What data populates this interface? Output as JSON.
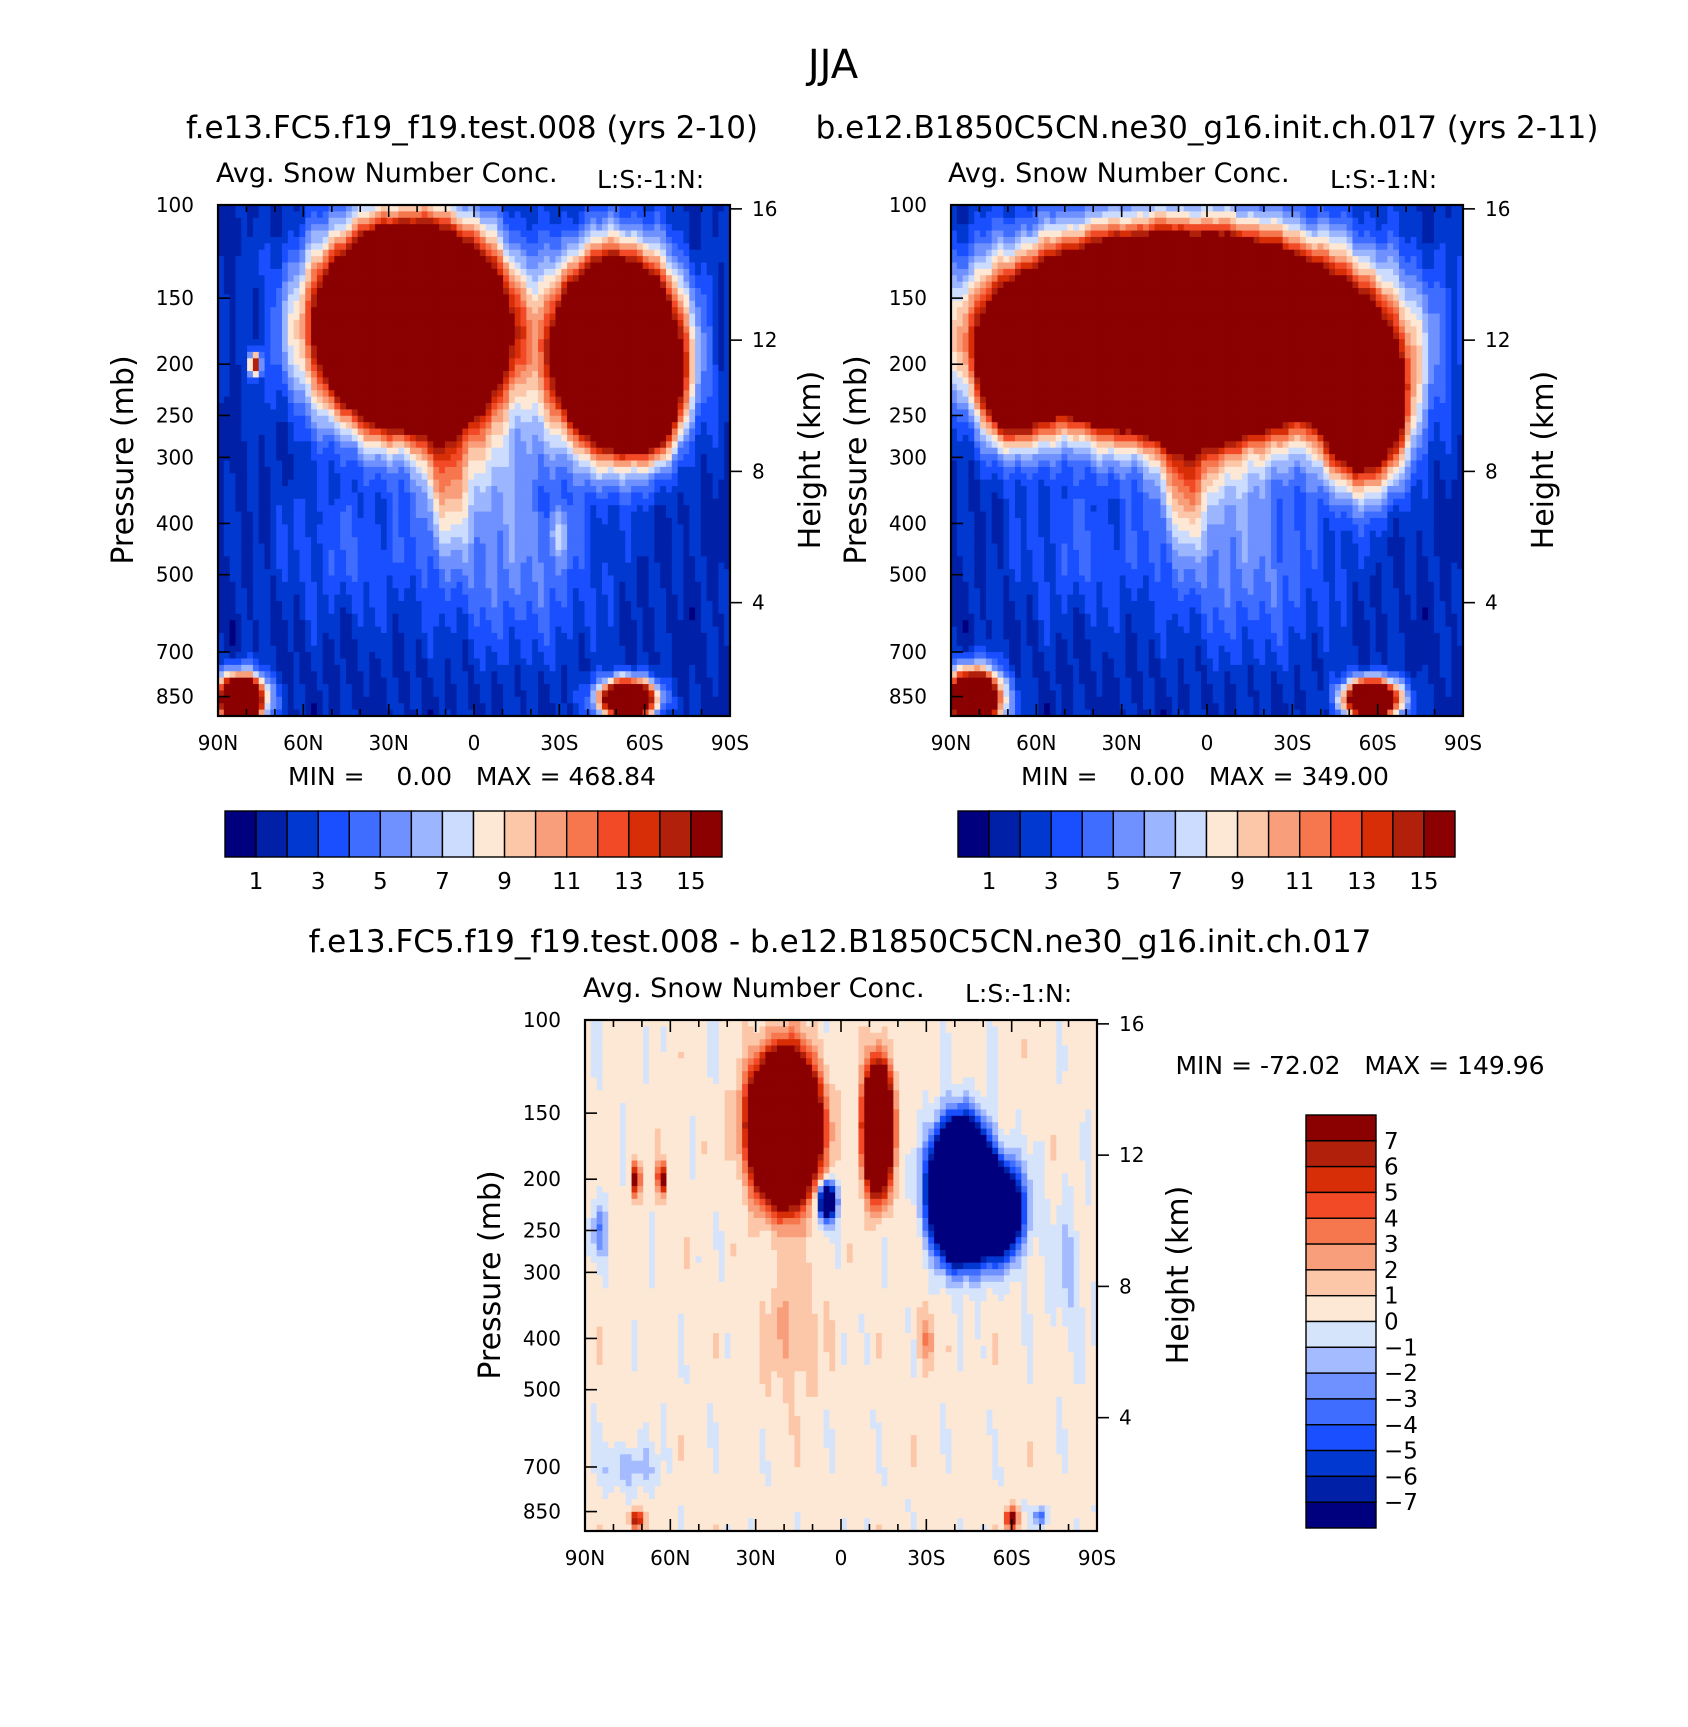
{
  "figure": {
    "title": "JJA",
    "colors": {
      "main_scale": [
        "#00007f",
        "#0020a8",
        "#0038d0",
        "#1a4fff",
        "#3f6dff",
        "#6e91ff",
        "#9cb5ff",
        "#ccdcff",
        "#fde8d5",
        "#fcc6a8",
        "#f99e7a",
        "#f6774e",
        "#f24a26",
        "#d82e08",
        "#b0200a",
        "#8b0000"
      ],
      "diff_scale": [
        "#00007f",
        "#0020a8",
        "#0038d0",
        "#1a4fff",
        "#3f6dff",
        "#6e91ff",
        "#a5bbff",
        "#d6e4fb",
        "#fde8d5",
        "#fcc6a8",
        "#f99e7a",
        "#f6774e",
        "#f24a26",
        "#d82e08",
        "#b0200a",
        "#8b0000"
      ]
    }
  },
  "chart_data": [
    {
      "id": "panel-test",
      "type": "heatmap",
      "case_title": "f.e13.FC5.f19_f19.test.008 (yrs 2-10)",
      "title": "Avg. Snow Number Conc.",
      "title_right": "L:S:-1:N:",
      "xlabel": "",
      "ylabel": "Pressure (mb)",
      "ylabel_right": "Height (km)",
      "x_ticks": [
        "90N",
        "60N",
        "30N",
        "0",
        "30S",
        "60S",
        "90S"
      ],
      "x_range": [
        90,
        -90
      ],
      "y_ticks": [
        100,
        150,
        200,
        250,
        300,
        400,
        500,
        700,
        850
      ],
      "y_range_mb": [
        100,
        925
      ],
      "y_scale": "log",
      "height_ticks_km": [
        4,
        8,
        12,
        16
      ],
      "min_text": "MIN =    0.00   MAX = 468.84",
      "min": 0.0,
      "max": 468.84,
      "colorbar": {
        "orientation": "horizontal",
        "labels": [
          "1",
          "3",
          "5",
          "7",
          "9",
          "11",
          "13",
          "15"
        ],
        "levels": 16
      },
      "blobs": [
        {
          "lat": 22,
          "p": 170,
          "w": 26,
          "h": 0.34,
          "v": 80
        },
        {
          "lat": -50,
          "p": 190,
          "w": 18,
          "h": 0.34,
          "v": 60
        },
        {
          "lat": -62,
          "p": 230,
          "w": 9,
          "h": 0.2,
          "v": 20
        },
        {
          "lat": 10,
          "p": 330,
          "w": 8,
          "h": 0.3,
          "v": 6
        },
        {
          "lat": -5,
          "p": 300,
          "w": 20,
          "h": 0.35,
          "v": 4
        },
        {
          "lat": -30,
          "p": 420,
          "w": 4,
          "h": 0.12,
          "v": 3
        },
        {
          "lat": 82,
          "p": 860,
          "w": 8,
          "h": 0.1,
          "v": 30
        },
        {
          "lat": -54,
          "p": 860,
          "w": 9,
          "h": 0.08,
          "v": 30
        },
        {
          "lat": 45,
          "p": 450,
          "w": 25,
          "h": 0.3,
          "v": 2
        },
        {
          "lat": -15,
          "p": 500,
          "w": 30,
          "h": 0.35,
          "v": 3
        },
        {
          "lat": 77,
          "p": 200,
          "w": 2,
          "h": 0.05,
          "v": 14
        }
      ]
    },
    {
      "id": "panel-control",
      "type": "heatmap",
      "case_title": "b.e12.B1850C5CN.ne30_g16.init.ch.017 (yrs 2-11)",
      "title": "Avg. Snow Number Conc.",
      "title_right": "L:S:-1:N:",
      "xlabel": "",
      "ylabel": "Pressure (mb)",
      "ylabel_right": "Height (km)",
      "x_ticks": [
        "90N",
        "60N",
        "30N",
        "0",
        "30S",
        "60S",
        "90S"
      ],
      "x_range": [
        90,
        -90
      ],
      "y_ticks": [
        100,
        150,
        200,
        250,
        300,
        400,
        500,
        700,
        850
      ],
      "y_range_mb": [
        100,
        925
      ],
      "y_scale": "log",
      "height_ticks_km": [
        4,
        8,
        12,
        16
      ],
      "min_text": "MIN =    0.00   MAX = 349.00",
      "min": 0.0,
      "max": 349.0,
      "colorbar": {
        "orientation": "horizontal",
        "labels": [
          "1",
          "3",
          "5",
          "7",
          "9",
          "11",
          "13",
          "15"
        ],
        "levels": 16
      },
      "blobs": [
        {
          "lat": 10,
          "p": 175,
          "w": 50,
          "h": 0.33,
          "v": 80
        },
        {
          "lat": -55,
          "p": 240,
          "w": 14,
          "h": 0.3,
          "v": 30
        },
        {
          "lat": 68,
          "p": 210,
          "w": 10,
          "h": 0.25,
          "v": 25
        },
        {
          "lat": 8,
          "p": 330,
          "w": 8,
          "h": 0.3,
          "v": 6
        },
        {
          "lat": -5,
          "p": 300,
          "w": 22,
          "h": 0.35,
          "v": 4
        },
        {
          "lat": 82,
          "p": 860,
          "w": 9,
          "h": 0.12,
          "v": 30
        },
        {
          "lat": -58,
          "p": 860,
          "w": 9,
          "h": 0.08,
          "v": 30
        },
        {
          "lat": 45,
          "p": 450,
          "w": 25,
          "h": 0.3,
          "v": 2
        },
        {
          "lat": -15,
          "p": 500,
          "w": 30,
          "h": 0.35,
          "v": 3
        }
      ]
    },
    {
      "id": "panel-diff",
      "type": "heatmap",
      "case_title": "f.e13.FC5.f19_f19.test.008 - b.e12.B1850C5CN.ne30_g16.init.ch.017",
      "title": "Avg. Snow Number Conc.",
      "title_right": "L:S:-1:N:",
      "xlabel": "",
      "ylabel": "Pressure (mb)",
      "ylabel_right": "Height (km)",
      "x_ticks": [
        "90N",
        "60N",
        "30N",
        "0",
        "30S",
        "60S",
        "90S"
      ],
      "x_range": [
        90,
        -90
      ],
      "y_ticks": [
        100,
        150,
        200,
        250,
        300,
        400,
        500,
        700,
        850
      ],
      "y_range_mb": [
        100,
        925
      ],
      "y_scale": "log",
      "height_ticks_km": [
        4,
        8,
        12,
        16
      ],
      "min_text": "MIN = -72.02   MAX = 149.96",
      "min": -72.02,
      "max": 149.96,
      "colorbar": {
        "orientation": "vertical",
        "labels": [
          "7",
          "6",
          "5",
          "4",
          "3",
          "2",
          "1",
          "0",
          "-1",
          "-2",
          "-3",
          "-4",
          "-5",
          "-6",
          "-7"
        ],
        "levels": 16
      },
      "blobs": [
        {
          "lat": 20,
          "p": 160,
          "w": 9,
          "h": 0.24,
          "v": 60
        },
        {
          "lat": -13,
          "p": 160,
          "w": 4,
          "h": 0.22,
          "v": 40
        },
        {
          "lat": -42,
          "p": 210,
          "w": 8,
          "h": 0.22,
          "v": -60
        },
        {
          "lat": -55,
          "p": 230,
          "w": 8,
          "h": 0.18,
          "v": -20
        },
        {
          "lat": 5,
          "p": 220,
          "w": 3,
          "h": 0.08,
          "v": -15
        },
        {
          "lat": 72,
          "p": 200,
          "w": 1.5,
          "h": 0.07,
          "v": 8
        },
        {
          "lat": 63,
          "p": 200,
          "w": 1.5,
          "h": 0.07,
          "v": 8
        },
        {
          "lat": 17,
          "p": 380,
          "w": 9,
          "h": 0.3,
          "v": 1.8
        },
        {
          "lat": -30,
          "p": 400,
          "w": 3,
          "h": 0.12,
          "v": 2.5
        },
        {
          "lat": 75,
          "p": 700,
          "w": 10,
          "h": 0.1,
          "v": -2
        },
        {
          "lat": -60,
          "p": 880,
          "w": 2,
          "h": 0.04,
          "v": 10
        },
        {
          "lat": 72,
          "p": 880,
          "w": 2,
          "h": 0.04,
          "v": 8
        },
        {
          "lat": -70,
          "p": 870,
          "w": 2,
          "h": 0.04,
          "v": -5
        },
        {
          "lat": 85,
          "p": 250,
          "w": 3,
          "h": 0.12,
          "v": -3
        },
        {
          "lat": -80,
          "p": 300,
          "w": 6,
          "h": 0.3,
          "v": -1.5
        }
      ]
    }
  ]
}
